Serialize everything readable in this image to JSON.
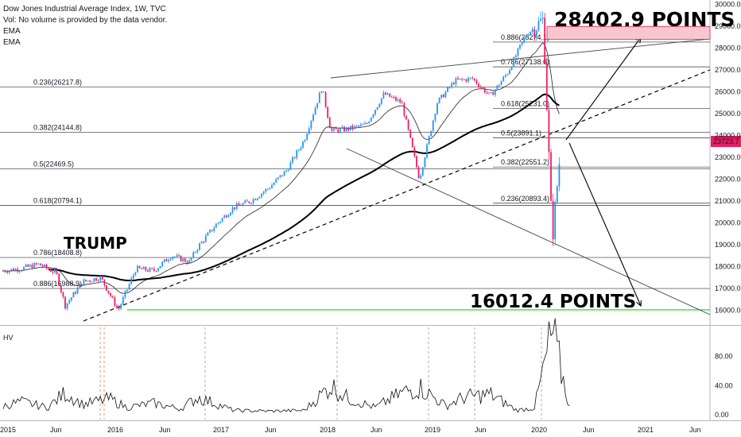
{
  "header": {
    "title": "Dow Jones Industrial Average Index, 1W, TVC",
    "vol_note": "Vol: No volume is provided by the data vendor.",
    "ema1": "EMA",
    "ema2": "EMA"
  },
  "indicator_label": "HV",
  "annotations": {
    "trump": "TRUMP",
    "upper_target": "28402.9 POINTS",
    "lower_target": "16012.4 POINTS"
  },
  "colors": {
    "up": "#2196f3",
    "down": "#e91e63",
    "target_box": "#f8c7cd",
    "green_line": "#00e000",
    "trump": "#ff8c00",
    "price_tag": "#e91e63"
  },
  "chart_data": [
    {
      "type": "line",
      "title": "Dow Jones Industrial Average Index, 1W, TVC",
      "x_ticks": [
        "2015",
        "Jun",
        "2016",
        "Jun",
        "2017",
        "Jun",
        "2018",
        "Jun",
        "2019",
        "Jun",
        "2020",
        "Jun",
        "2021",
        "Jun"
      ],
      "y_ticks": [
        16000,
        17000,
        18000,
        19000,
        20000,
        21000,
        22000,
        23000,
        24000,
        25000,
        26000,
        27000,
        28000,
        29000,
        30000
      ],
      "ylim": [
        15500,
        30200
      ],
      "last_price": "23723.7",
      "price_series_approx": [
        [
          "2015-01",
          17800
        ],
        [
          "2015-03",
          17900
        ],
        [
          "2015-05",
          18100
        ],
        [
          "2015-07",
          17700
        ],
        [
          "2015-08",
          16200
        ],
        [
          "2015-10",
          17300
        ],
        [
          "2015-12",
          17500
        ],
        [
          "2016-02",
          16000
        ],
        [
          "2016-04",
          17900
        ],
        [
          "2016-06",
          17800
        ],
        [
          "2016-08",
          18500
        ],
        [
          "2016-10",
          18200
        ],
        [
          "2016-11",
          18900
        ],
        [
          "2017-01",
          19900
        ],
        [
          "2017-03",
          20700
        ],
        [
          "2017-05",
          21000
        ],
        [
          "2017-07",
          21600
        ],
        [
          "2017-09",
          22400
        ],
        [
          "2017-11",
          23800
        ],
        [
          "2018-01",
          26200
        ],
        [
          "2018-02",
          24200
        ],
        [
          "2018-04",
          24300
        ],
        [
          "2018-06",
          24500
        ],
        [
          "2018-08",
          25900
        ],
        [
          "2018-10",
          25500
        ],
        [
          "2018-12",
          22000
        ],
        [
          "2019-02",
          25500
        ],
        [
          "2019-04",
          26500
        ],
        [
          "2019-06",
          26600
        ],
        [
          "2019-08",
          25800
        ],
        [
          "2019-10",
          26900
        ],
        [
          "2019-12",
          28600
        ],
        [
          "2020-02",
          29300
        ],
        [
          "2020-03",
          19200
        ],
        [
          "2020-04",
          23700
        ]
      ],
      "fib_levels": [
        {
          "label": "0.236(26217.8)",
          "value": 26217.8
        },
        {
          "label": "0.382(24144.8)",
          "value": 24144.8
        },
        {
          "label": "0.5(22469.5)",
          "value": 22469.5
        },
        {
          "label": "0.618(20794.1)",
          "value": 20794.1
        },
        {
          "label": "0.786(18408.8)",
          "value": 18408.8
        },
        {
          "label": "0.886(16988.9)",
          "value": 16988.9
        },
        {
          "label": "0.886(28274.1)",
          "value": 28274.1
        },
        {
          "label": "0.786(27138.6)",
          "value": 27138.6
        },
        {
          "label": "0.618(25231.0)",
          "value": 25231.0
        },
        {
          "label": "0.5(23891.1)",
          "value": 23891.1
        },
        {
          "label": "0.382(22551.2)",
          "value": 22551.2
        },
        {
          "label": "0.236(20893.4)",
          "value": 20893.4
        }
      ],
      "targets": [
        {
          "label": "28402.9 POINTS",
          "value": 28402.9
        },
        {
          "label": "16012.4 POINTS",
          "value": 16012.4
        }
      ]
    },
    {
      "type": "line",
      "title": "HV",
      "y_ticks": [
        "0.00",
        "40.00",
        "80.00"
      ],
      "ylim": [
        0,
        120
      ],
      "series_approx": [
        [
          "2015-01",
          12
        ],
        [
          "2015-03",
          18
        ],
        [
          "2015-06",
          10
        ],
        [
          "2015-08",
          30
        ],
        [
          "2015-10",
          14
        ],
        [
          "2016-01",
          22
        ],
        [
          "2016-03",
          10
        ],
        [
          "2016-06",
          16
        ],
        [
          "2016-09",
          8
        ],
        [
          "2016-11",
          24
        ],
        [
          "2017-03",
          6
        ],
        [
          "2017-07",
          5
        ],
        [
          "2017-11",
          6
        ],
        [
          "2018-02",
          40
        ],
        [
          "2018-04",
          22
        ],
        [
          "2018-07",
          10
        ],
        [
          "2018-10",
          30
        ],
        [
          "2018-12",
          38
        ],
        [
          "2019-03",
          12
        ],
        [
          "2019-05",
          24
        ],
        [
          "2019-08",
          28
        ],
        [
          "2019-11",
          6
        ],
        [
          "2020-01",
          10
        ],
        [
          "2020-03",
          112
        ],
        [
          "2020-04",
          60
        ],
        [
          "2020-05",
          8
        ]
      ]
    }
  ]
}
